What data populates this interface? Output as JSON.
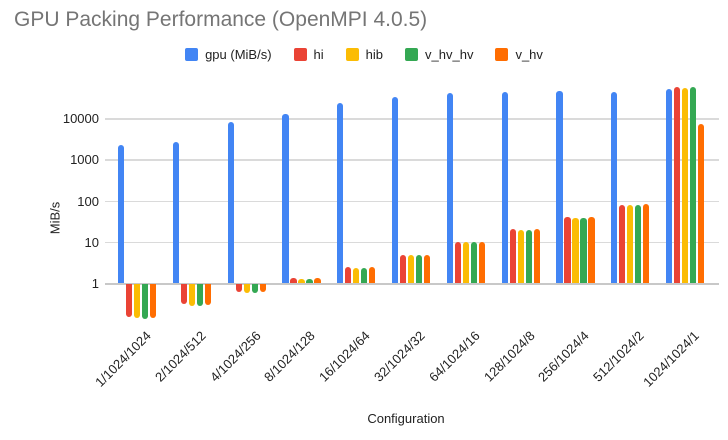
{
  "title": "GPU Packing Performance (OpenMPI 4.0.5)",
  "chart_data": {
    "type": "bar",
    "title": "GPU Packing Performance (OpenMPI 4.0.5)",
    "xlabel": "Configuration",
    "ylabel": "MiB/s",
    "y_scale": "log",
    "y_ticks": [
      1,
      10,
      100,
      1000,
      10000
    ],
    "ylim": [
      0.1,
      60000
    ],
    "grid": true,
    "legend_position": "top",
    "title_color": "#757575",
    "categories": [
      "1/1024/1024",
      "2/1024/512",
      "4/1024/256",
      "8/1024/128",
      "16/1024/64",
      "32/1024/32",
      "64/1024/16",
      "128/1024/8",
      "256/1024/4",
      "512/1024/2",
      "1024/1024/1"
    ],
    "series": [
      {
        "name": "gpu (MiB/s)",
        "color": "#4285F4",
        "values": [
          2200,
          2600,
          8000,
          12500,
          23500,
          33000,
          41000,
          43000,
          45000,
          43000,
          50000
        ]
      },
      {
        "name": "hi",
        "color": "#EA4335",
        "values": [
          0.16,
          0.33,
          0.65,
          1.3,
          2.4,
          4.8,
          9.8,
          20,
          39,
          78,
          55000
        ]
      },
      {
        "name": "hib",
        "color": "#FBBC04",
        "values": [
          0.15,
          0.3,
          0.62,
          1.25,
          2.3,
          4.7,
          9.6,
          19.5,
          38,
          76,
          52000
        ]
      },
      {
        "name": "v_hv_hv",
        "color": "#34A853",
        "values": [
          0.14,
          0.3,
          0.62,
          1.25,
          2.3,
          4.7,
          9.6,
          19.5,
          38,
          76,
          58000
        ]
      },
      {
        "name": "v_hv",
        "color": "#FF6D01",
        "values": [
          0.15,
          0.31,
          0.63,
          1.3,
          2.4,
          4.8,
          9.8,
          20,
          39,
          82,
          7000
        ]
      }
    ]
  }
}
